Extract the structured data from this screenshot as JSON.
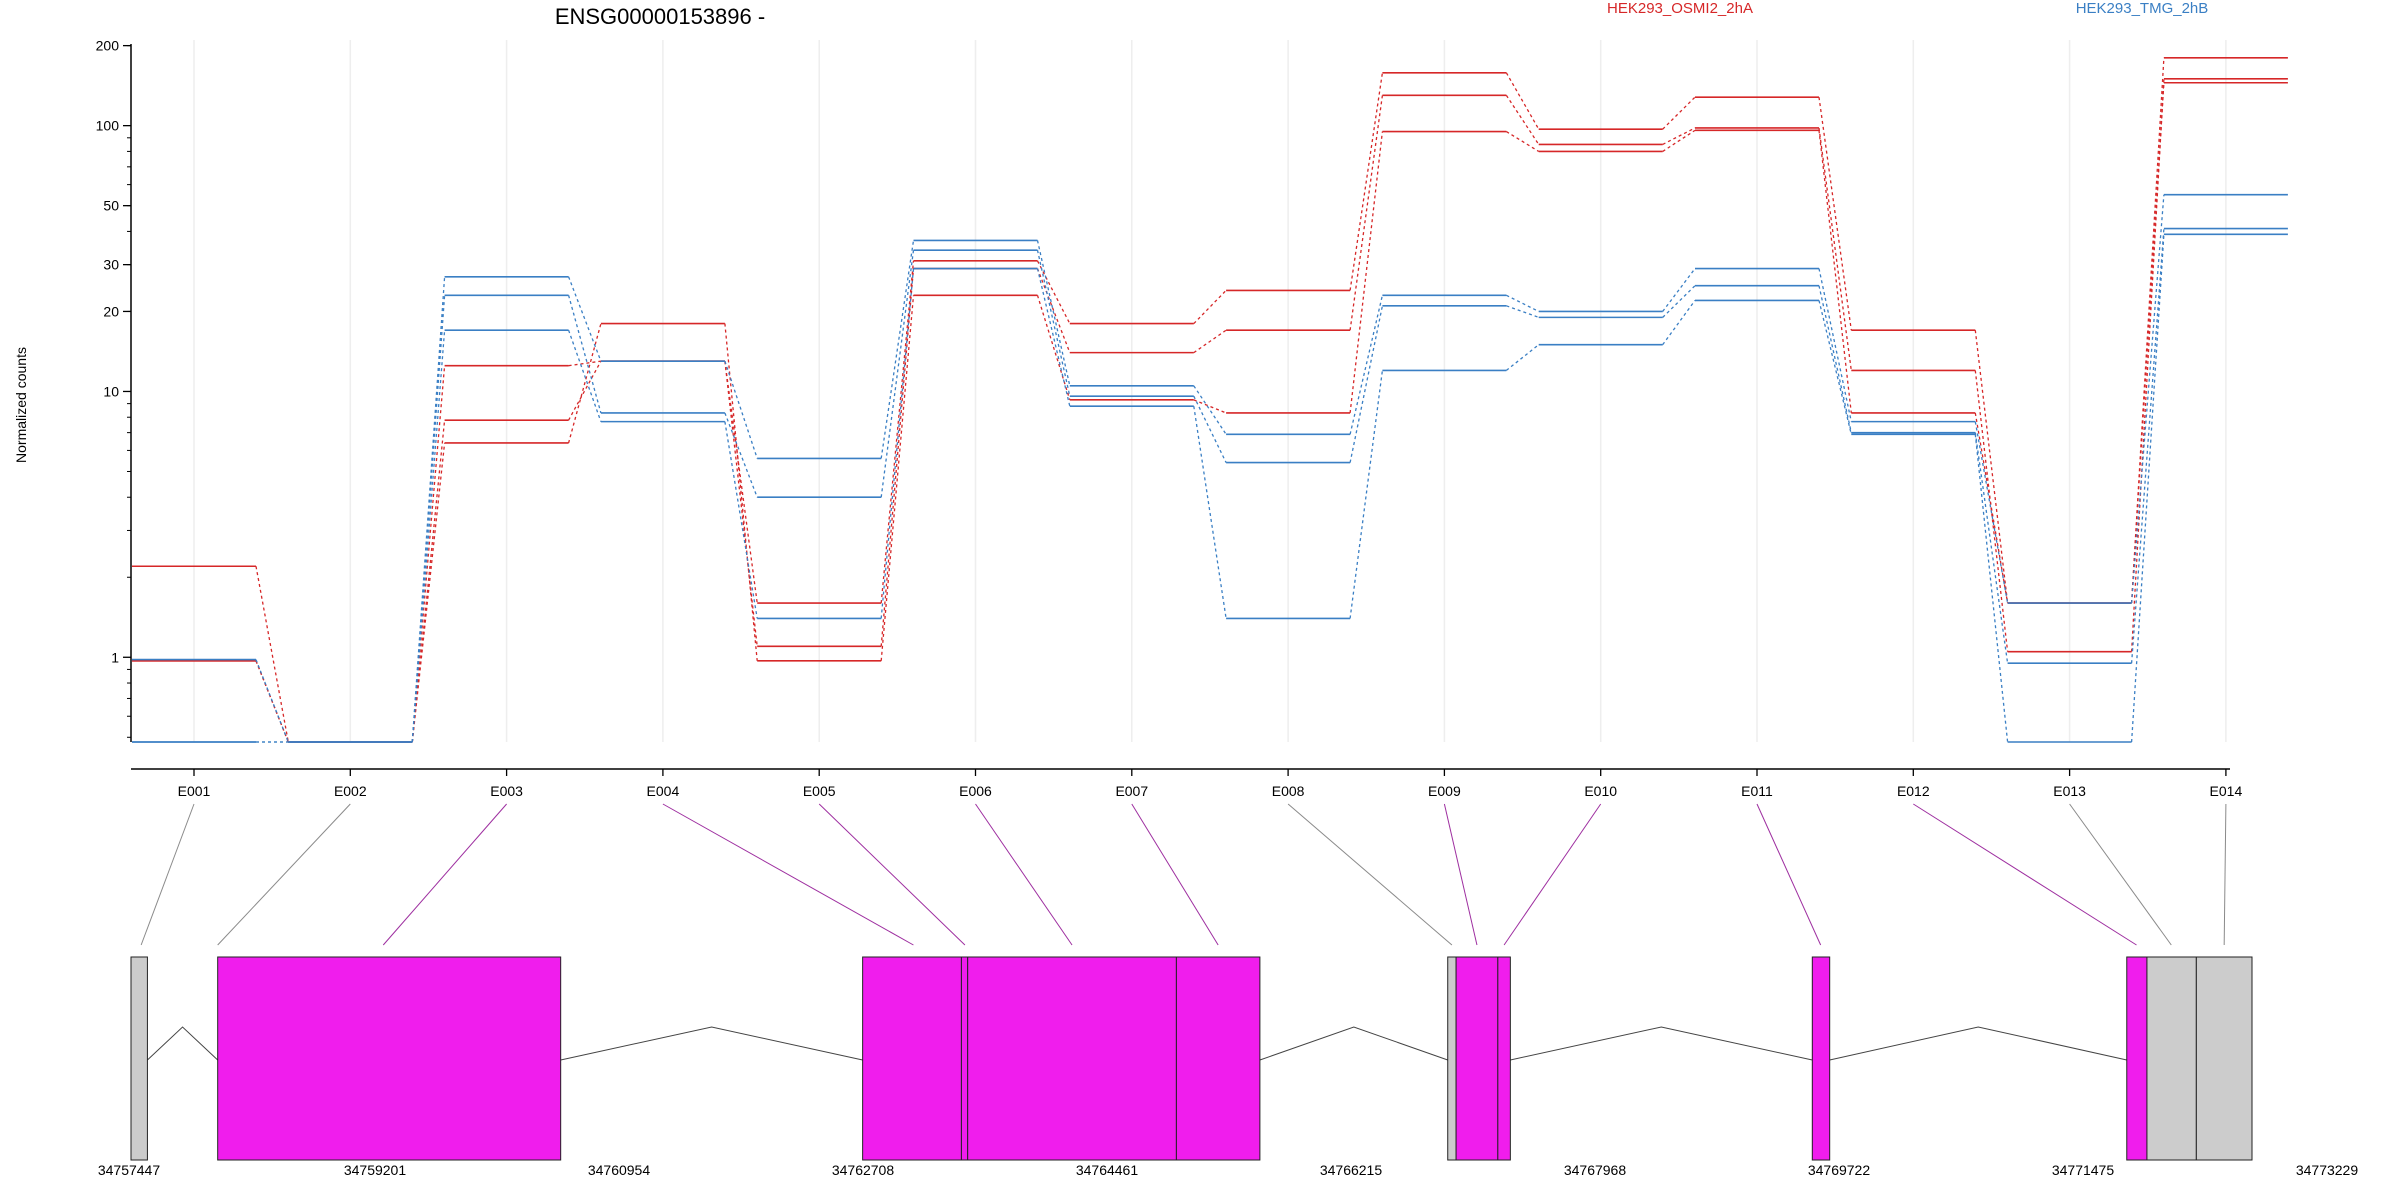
{
  "chart_data": {
    "type": "line",
    "title": "ENSG00000153896 -",
    "ylabel": "Normalized counts",
    "yscale": "log",
    "ylim": [
      0.48,
      210
    ],
    "y_ticks": [
      1,
      10,
      20,
      30,
      50,
      100,
      200
    ],
    "grid": "vertical, light",
    "legend": "top",
    "categories": [
      "E001",
      "E002",
      "E003",
      "E004",
      "E005",
      "E006",
      "E007",
      "E008",
      "E009",
      "E010",
      "E011",
      "E012",
      "E013",
      "E014"
    ],
    "series": [
      {
        "name": "HEK293_OSMI2_2hA",
        "color": "#d62728",
        "values": [
          2.2,
          0.48,
          12.5,
          13.0,
          1.6,
          31,
          18,
          24,
          158,
          97,
          128,
          17,
          1.6,
          180
        ]
      },
      {
        "name": "HEK293_OSMI2_2hA",
        "color": "#d62728",
        "values": [
          0.97,
          0.48,
          7.8,
          13.0,
          1.1,
          29,
          14,
          17,
          130,
          85,
          98,
          12,
          1.05,
          150
        ]
      },
      {
        "name": "HEK293_OSMI2_2hA",
        "color": "#d62728",
        "values": [
          0.97,
          0.48,
          6.4,
          18.0,
          0.97,
          23,
          9.3,
          8.3,
          95,
          80,
          96,
          8.3,
          1.6,
          145
        ]
      },
      {
        "name": "HEK293_TMG_2hB",
        "color": "#3a7fc4",
        "values": [
          0.98,
          0.48,
          27,
          13.0,
          5.6,
          37,
          10.5,
          6.9,
          23,
          20,
          29,
          7.7,
          1.6,
          55
        ]
      },
      {
        "name": "HEK293_TMG_2hB",
        "color": "#3a7fc4",
        "values": [
          0.48,
          0.48,
          23,
          8.3,
          4.0,
          34,
          9.6,
          5.4,
          21,
          19,
          25,
          7.0,
          0.95,
          41
        ]
      },
      {
        "name": "HEK293_TMG_2hB",
        "color": "#3a7fc4",
        "values": [
          0.48,
          0.48,
          17,
          7.7,
          1.4,
          29,
          8.8,
          1.4,
          12,
          15,
          22,
          6.9,
          0.48,
          39
        ]
      }
    ],
    "legend_labels": [
      "HEK293_OSMI2_2hA",
      "HEK293_TMG_2hB"
    ],
    "legend_colors": [
      "#d62728",
      "#3a7fc4"
    ],
    "gene_model": {
      "coordinate_labels": [
        "34757447",
        "34759201",
        "34760954",
        "34762708",
        "34764461",
        "34766215",
        "34767968",
        "34769722",
        "34771475",
        "34773229"
      ],
      "coord_range": [
        34757447,
        34773229
      ],
      "exons": [
        {
          "start": 34757447,
          "end": 34757565,
          "kind": "noncoding"
        },
        {
          "start": 34758070,
          "end": 34760535,
          "kind": "coding"
        },
        {
          "start": 34762705,
          "end": 34763415,
          "kind": "coding"
        },
        {
          "start": 34763415,
          "end": 34763460,
          "kind": "coding"
        },
        {
          "start": 34763460,
          "end": 34764960,
          "kind": "coding"
        },
        {
          "start": 34764960,
          "end": 34765560,
          "kind": "coding"
        },
        {
          "start": 34766910,
          "end": 34766970,
          "kind": "noncoding"
        },
        {
          "start": 34766970,
          "end": 34767270,
          "kind": "coding"
        },
        {
          "start": 34767270,
          "end": 34767360,
          "kind": "coding"
        },
        {
          "start": 34769530,
          "end": 34769655,
          "kind": "coding"
        },
        {
          "start": 34771790,
          "end": 34771935,
          "kind": "coding"
        },
        {
          "start": 34771935,
          "end": 34772290,
          "kind": "noncoding"
        },
        {
          "start": 34772290,
          "end": 34772690,
          "kind": "noncoding"
        }
      ],
      "exon_bin_links": [
        {
          "bin": "E001",
          "pos": 34757520,
          "kind": "noncoding"
        },
        {
          "bin": "E002",
          "pos": 34758070,
          "kind": "noncoding"
        },
        {
          "bin": "E003",
          "pos": 34759260,
          "kind": "coding"
        },
        {
          "bin": "E004",
          "pos": 34763070,
          "kind": "coding"
        },
        {
          "bin": "E005",
          "pos": 34763440,
          "kind": "coding"
        },
        {
          "bin": "E006",
          "pos": 34764210,
          "kind": "coding"
        },
        {
          "bin": "E007",
          "pos": 34765260,
          "kind": "coding"
        },
        {
          "bin": "E008",
          "pos": 34766940,
          "kind": "noncoding"
        },
        {
          "bin": "E009",
          "pos": 34767120,
          "kind": "coding"
        },
        {
          "bin": "E010",
          "pos": 34767315,
          "kind": "coding"
        },
        {
          "bin": "E011",
          "pos": 34769590,
          "kind": "coding"
        },
        {
          "bin": "E012",
          "pos": 34771860,
          "kind": "coding"
        },
        {
          "bin": "E013",
          "pos": 34772110,
          "kind": "noncoding"
        },
        {
          "bin": "E014",
          "pos": 34772490,
          "kind": "noncoding"
        }
      ],
      "colors": {
        "coding": "#f01ded",
        "noncoding": "#cccccc",
        "link_coding": "#9e2fa0",
        "link_noncoding": "#8a8a8a"
      }
    }
  }
}
